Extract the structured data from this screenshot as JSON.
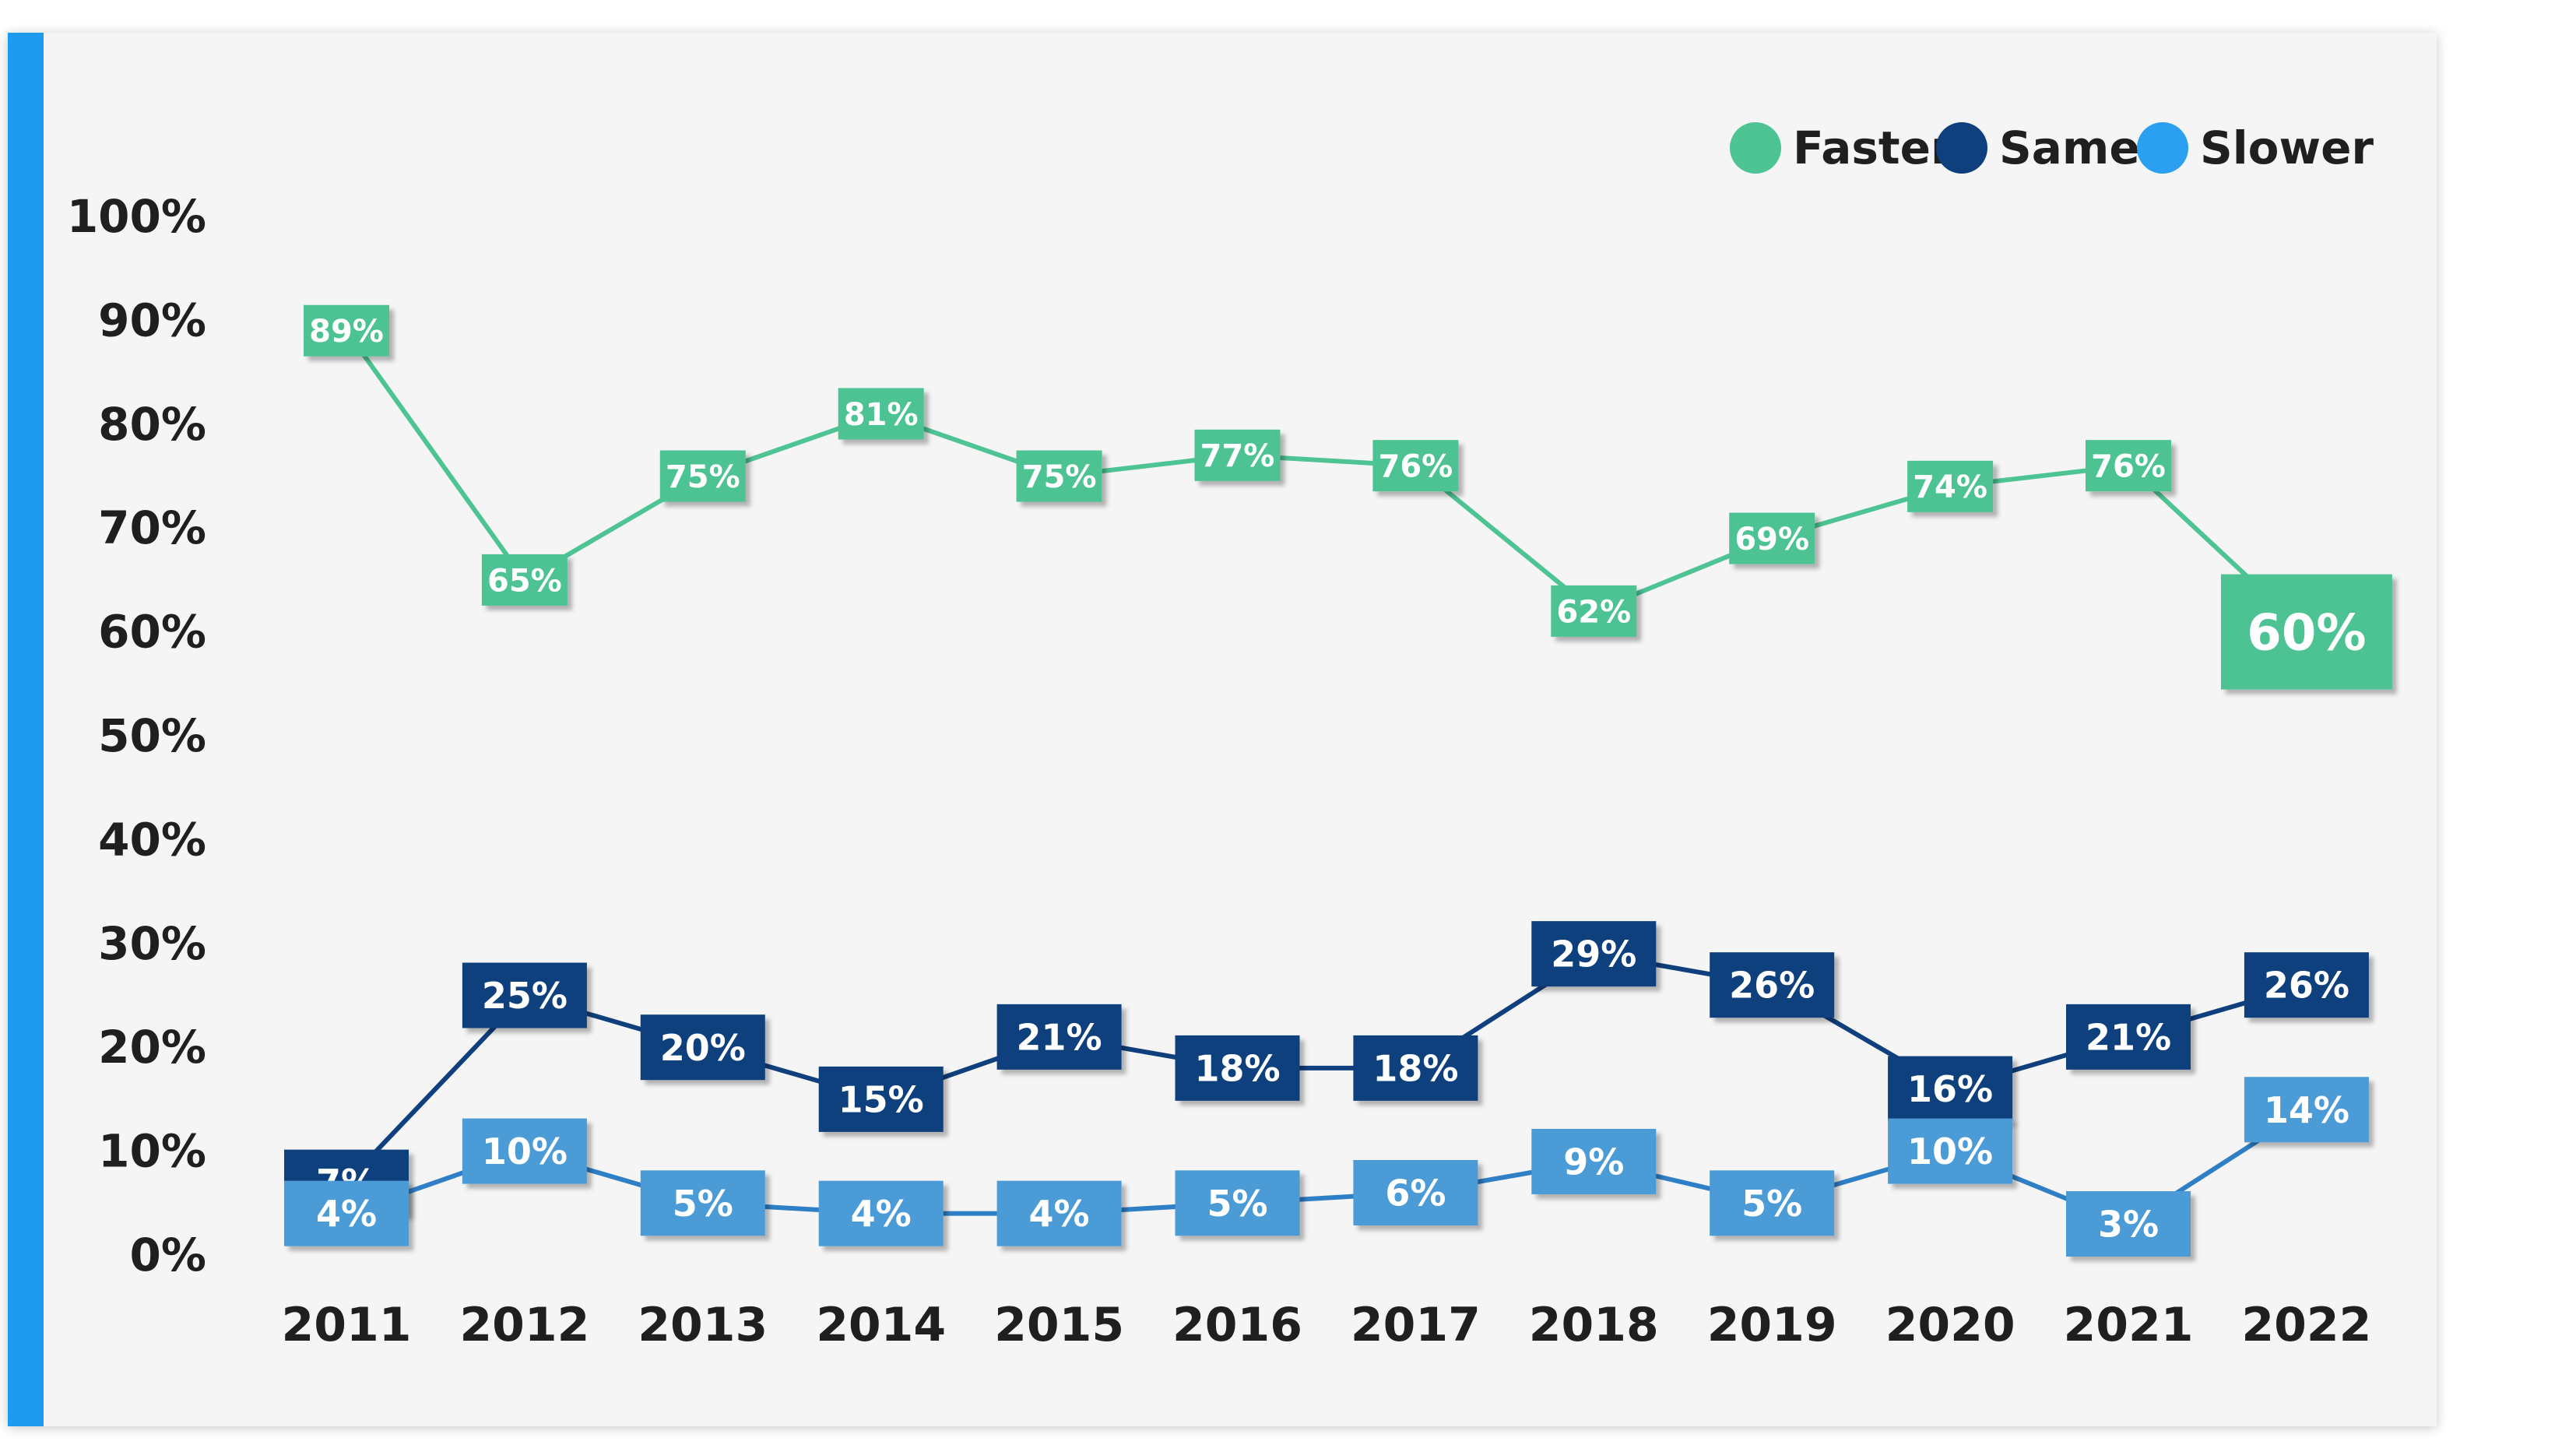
{
  "colors": {
    "accent": "#1e9bf0",
    "card_bg": "#f5f5f5",
    "faster": "#4ec394",
    "same": "#0f3f7d",
    "slower": "#4c9bd6",
    "slower_legend": "#2ba0f0",
    "slower_line": "#2f7fc6",
    "axis_text": "#1f1f1f"
  },
  "chart_data": {
    "type": "line",
    "title": "",
    "xlabel": "",
    "ylabel": "",
    "ylim": [
      0,
      100
    ],
    "y_ticks": [
      "0%",
      "10%",
      "20%",
      "30%",
      "40%",
      "50%",
      "60%",
      "70%",
      "80%",
      "90%",
      "100%"
    ],
    "grid": false,
    "legend_position": "top-right",
    "categories": [
      "2011",
      "2012",
      "2013",
      "2014",
      "2015",
      "2016",
      "2017",
      "2018",
      "2019",
      "2020",
      "2021",
      "2022"
    ],
    "series": [
      {
        "name": "Faster",
        "values": [
          89,
          65,
          75,
          81,
          75,
          77,
          76,
          62,
          69,
          74,
          76,
          60
        ],
        "labels": [
          "89%",
          "65%",
          "75%",
          "81%",
          "75%",
          "77%",
          "76%",
          "62%",
          "69%",
          "74%",
          "76%",
          "60%"
        ]
      },
      {
        "name": "Same",
        "values": [
          7,
          25,
          20,
          15,
          21,
          18,
          18,
          29,
          26,
          16,
          21,
          26
        ],
        "labels": [
          "7%",
          "25%",
          "20%",
          "15%",
          "21%",
          "18%",
          "18%",
          "29%",
          "26%",
          "16%",
          "21%",
          "26%"
        ]
      },
      {
        "name": "Slower",
        "values": [
          4,
          10,
          5,
          4,
          4,
          5,
          6,
          9,
          5,
          10,
          3,
          14
        ],
        "labels": [
          "4%",
          "10%",
          "5%",
          "4%",
          "4%",
          "5%",
          "6%",
          "9%",
          "5%",
          "10%",
          "3%",
          "14%"
        ]
      }
    ],
    "legend": [
      "Faster",
      "Same",
      "Slower"
    ]
  }
}
